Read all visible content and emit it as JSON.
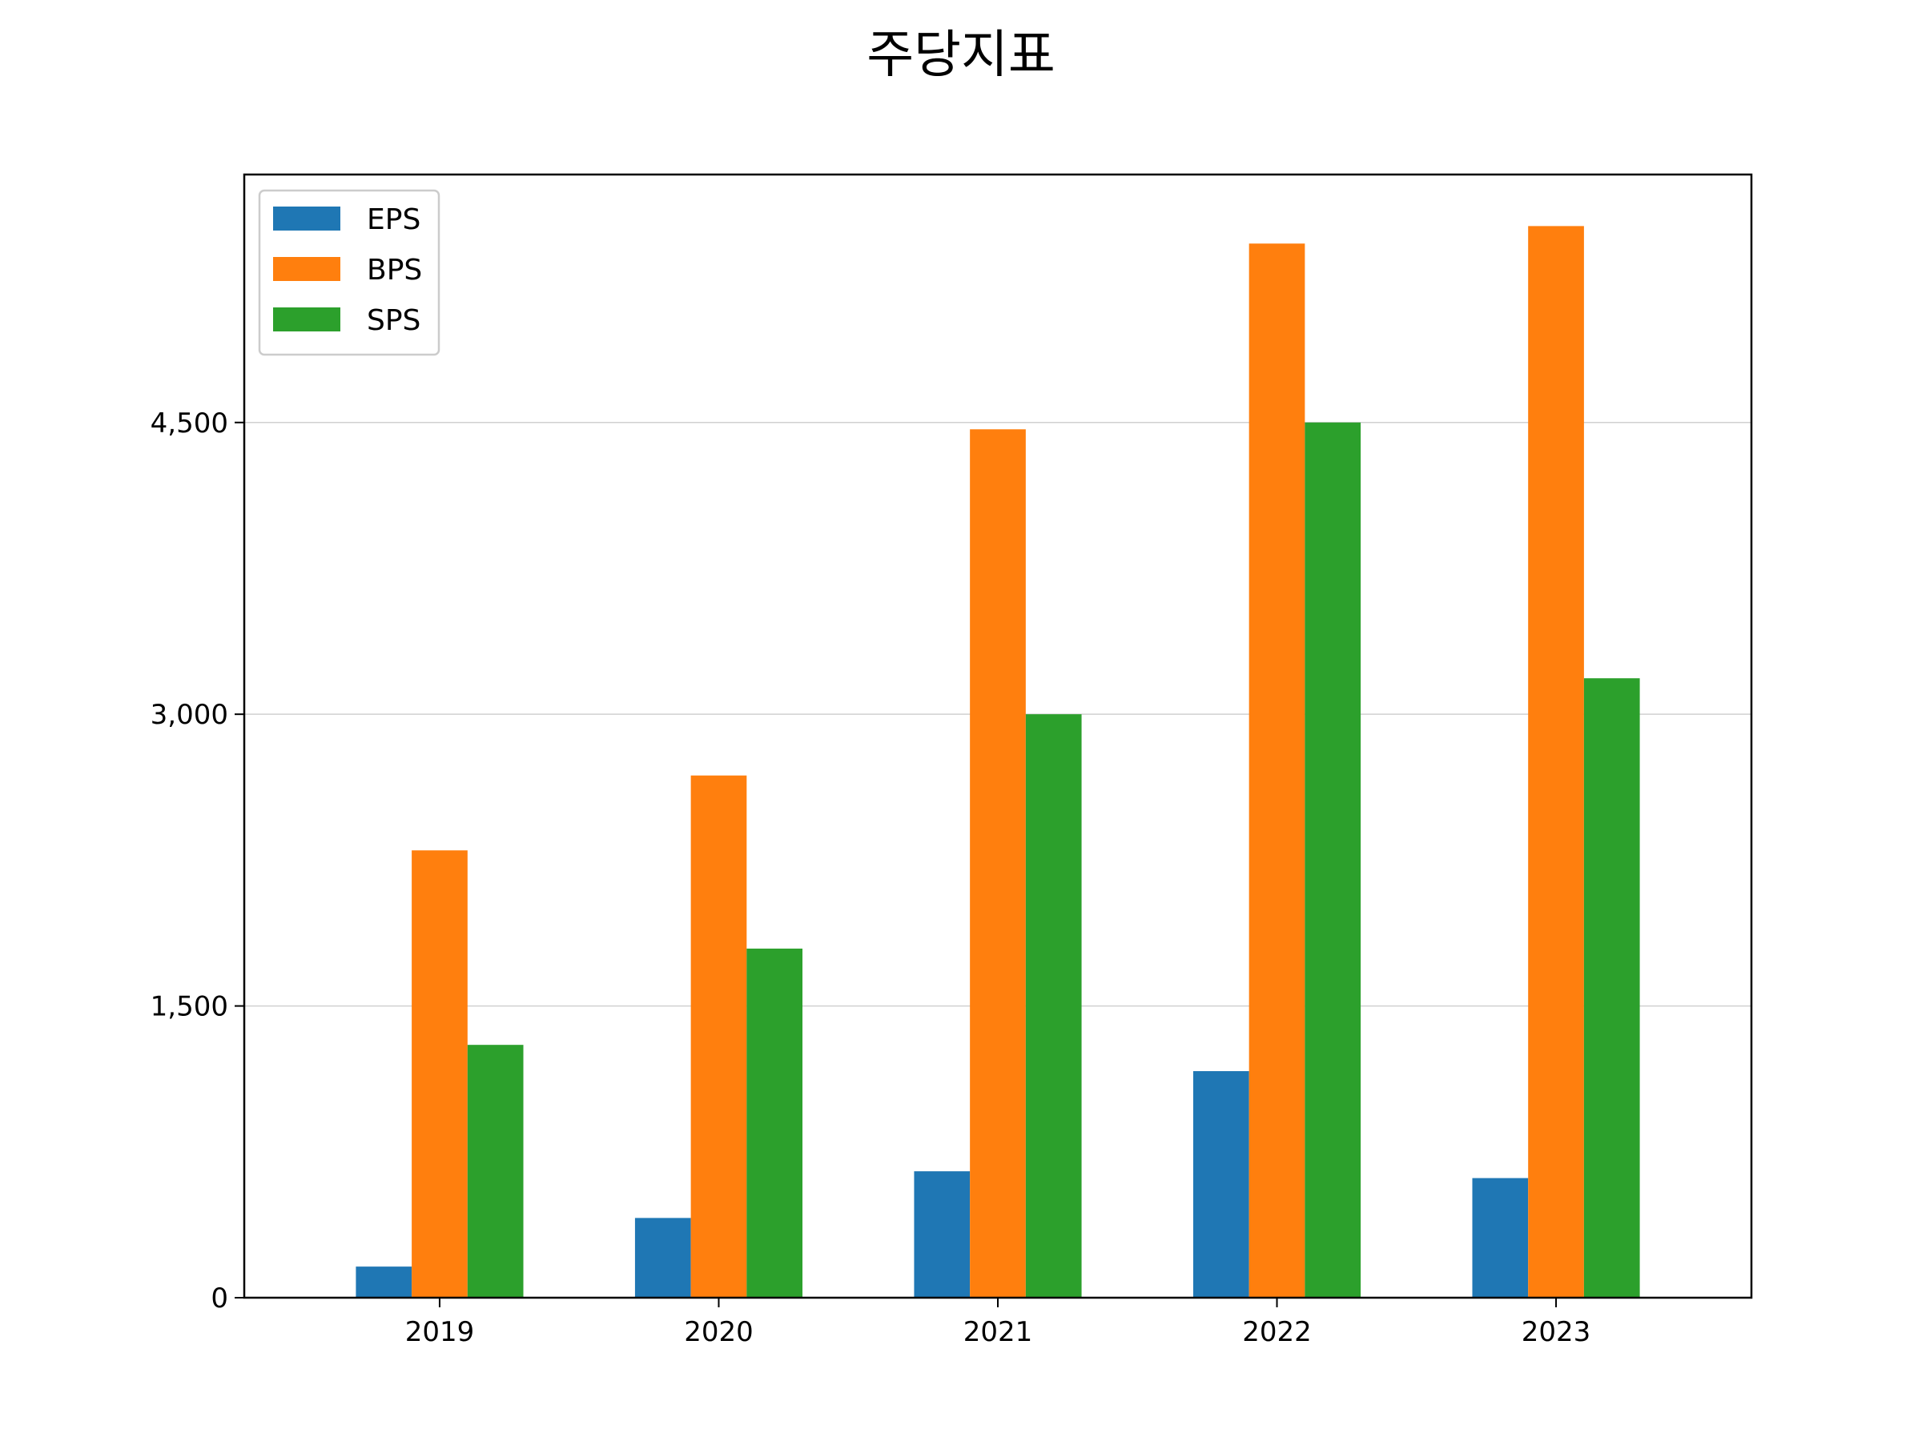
{
  "chart_data": {
    "type": "bar",
    "title": "주당지표",
    "xlabel": "",
    "ylabel": "",
    "categories": [
      "2019",
      "2020",
      "2021",
      "2022",
      "2023"
    ],
    "series": [
      {
        "name": "EPS",
        "color": "#1f77b4",
        "values": [
          160,
          410,
          650,
          1165,
          615
        ]
      },
      {
        "name": "BPS",
        "color": "#ff7f0e",
        "values": [
          2300,
          2685,
          4465,
          5420,
          5510
        ]
      },
      {
        "name": "SPS",
        "color": "#2ca02c",
        "values": [
          1300,
          1795,
          3000,
          4500,
          3185
        ]
      }
    ],
    "ylim": [
      0,
      5775
    ],
    "yticks": [
      0,
      1500,
      3000,
      4500
    ],
    "ytick_labels": [
      "0",
      "1,500",
      "3,000",
      "4,500"
    ],
    "grid": "y",
    "legend_position": "upper-left"
  }
}
